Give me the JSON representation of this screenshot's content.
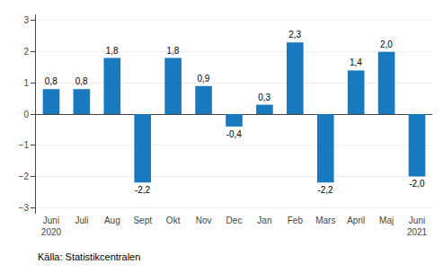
{
  "chart_data": {
    "type": "bar",
    "categories": [
      "Juni\n2020",
      "Juli",
      "Aug",
      "Sept",
      "Okt",
      "Nov",
      "Dec",
      "Jan",
      "Feb",
      "Mars",
      "April",
      "Maj",
      "Juni\n2021"
    ],
    "values": [
      0.8,
      0.8,
      1.8,
      -2.2,
      1.8,
      0.9,
      -0.4,
      0.3,
      2.3,
      -2.2,
      1.4,
      2.0,
      -2.0
    ],
    "value_labels": [
      "0,8",
      "0,8",
      "1,8",
      "-2,2",
      "1,8",
      "0,9",
      "-0,4",
      "0,3",
      "2,3",
      "-2,2",
      "1,4",
      "2,0",
      "-2,0"
    ],
    "data_labels": true,
    "color": "#1a7abf",
    "ylim": [
      -3.2,
      3.2
    ],
    "yticks": [
      -3,
      -2,
      -1,
      0,
      1,
      2,
      3
    ],
    "grid": true,
    "annotations": [
      "Källa: Statistikcentralen"
    ]
  }
}
